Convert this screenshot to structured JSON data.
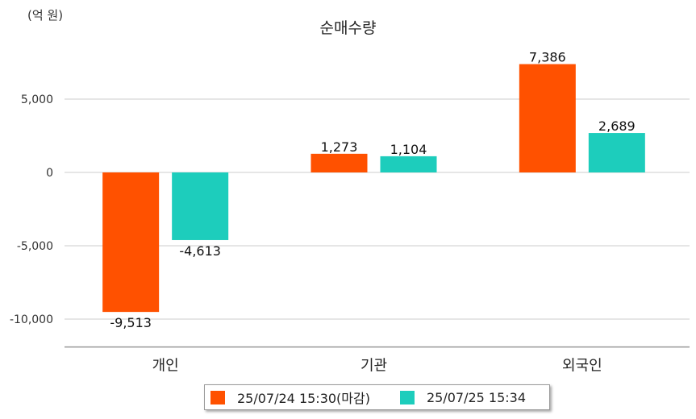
{
  "unit_label": "(억 원)",
  "chart_data": {
    "type": "bar",
    "title": "순매수량",
    "xlabel": "",
    "ylabel": "",
    "categories": [
      "개인",
      "기관",
      "외국인"
    ],
    "series": [
      {
        "name": "25/07/24 15:30(마감)",
        "color": "#FF5100",
        "values": [
          -9513,
          1273,
          7386
        ],
        "labels": [
          "-9,513",
          "1,273",
          "7,386"
        ]
      },
      {
        "name": "25/07/25 15:34",
        "color": "#1DCDBC",
        "values": [
          -4613,
          1104,
          2689
        ],
        "labels": [
          "-4,613",
          "1,104",
          "2,689"
        ]
      }
    ],
    "yticks": [
      5000,
      0,
      -5000,
      -10000
    ],
    "ytick_labels": [
      "5,000",
      "0",
      "-5,000",
      "-10,000"
    ],
    "ylim": [
      -11900,
      9900
    ],
    "grid": true,
    "legend_position": "bottom"
  }
}
